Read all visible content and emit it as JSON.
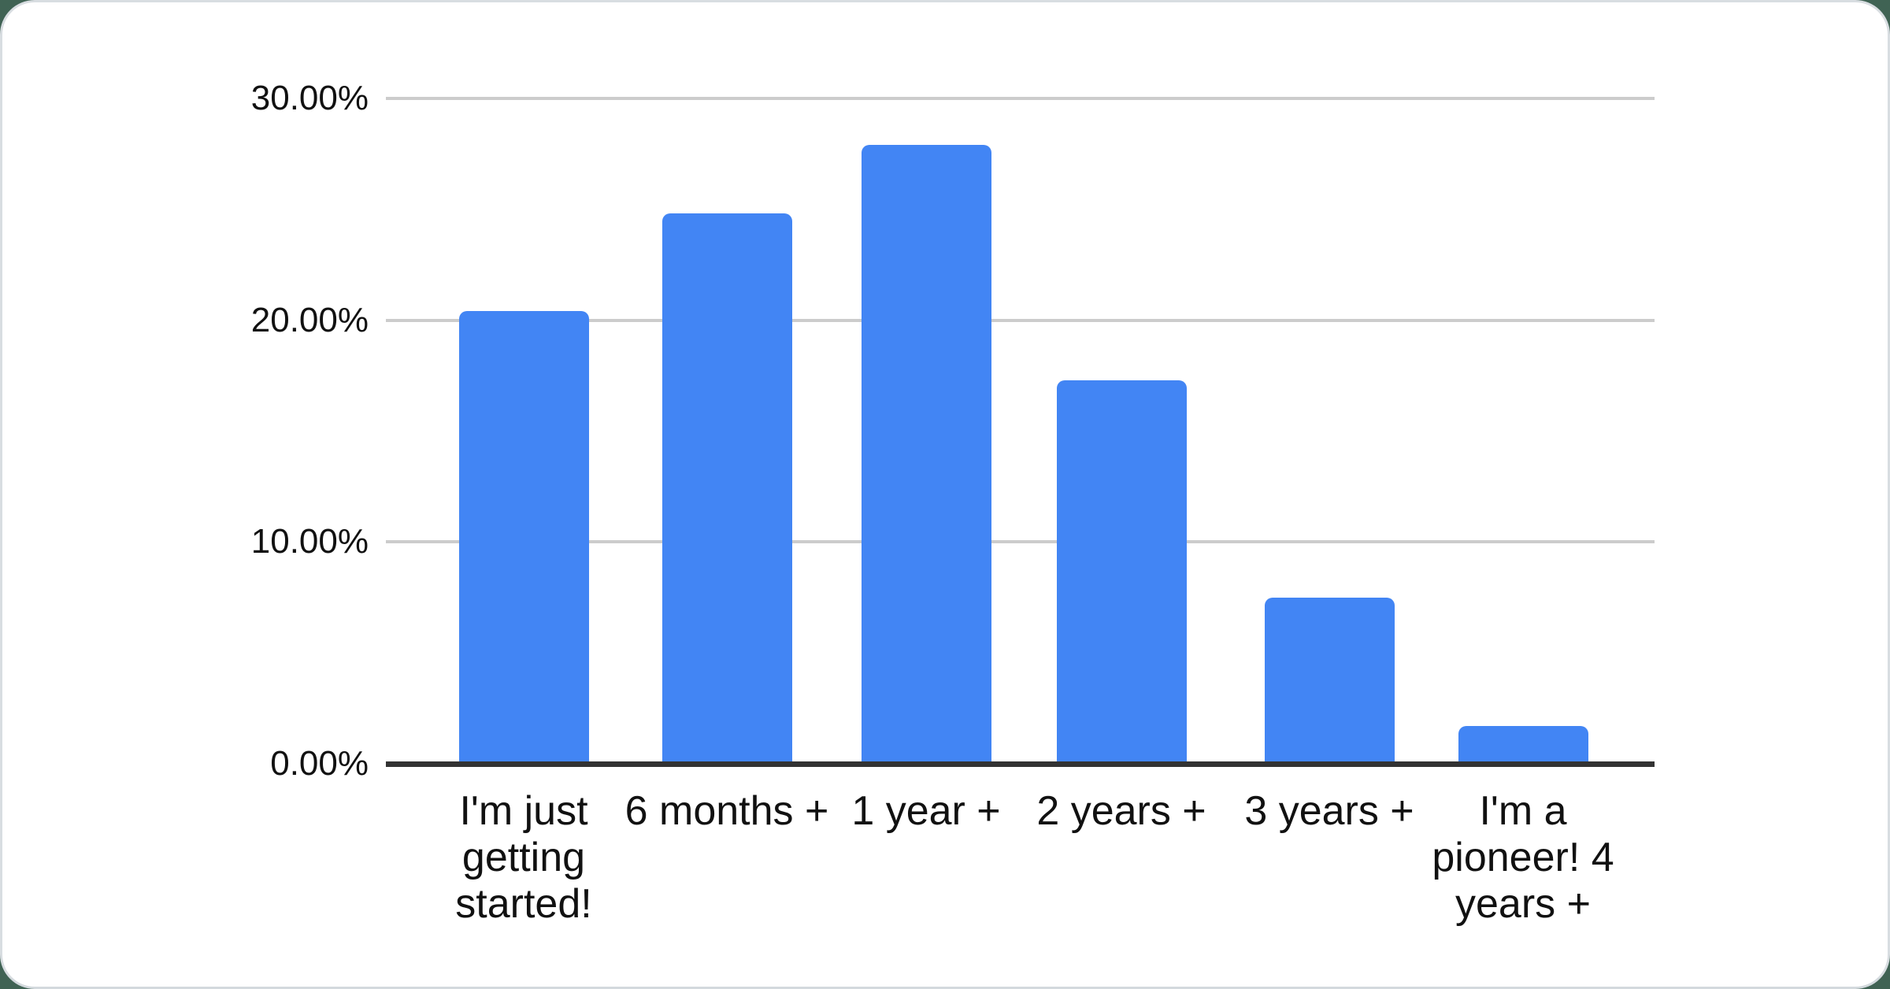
{
  "chart_data": {
    "type": "bar",
    "title": "",
    "xlabel": "",
    "ylabel": "",
    "categories": [
      "I'm just getting started!",
      "6 months +",
      "1 year +",
      "2 years +",
      "3 years +",
      "I'm a pioneer! 4 years +"
    ],
    "values": [
      20.4,
      24.8,
      27.9,
      17.3,
      7.5,
      1.7
    ],
    "value_unit": "percent",
    "ylim": [
      0,
      30
    ],
    "grid": true,
    "legend_position": "none",
    "y_ticks": [
      {
        "value": 30,
        "label": "30.00%"
      },
      {
        "value": 20,
        "label": "20.00%"
      },
      {
        "value": 10,
        "label": "10.00%"
      },
      {
        "value": 0,
        "label": "0.00%"
      }
    ]
  },
  "colors": {
    "bar": "#4285f4",
    "grid": "#cccccc",
    "axis": "#333333",
    "text": "#111111",
    "card_background": "#ffffff",
    "card_border": "#d8dde1",
    "page_background": "#406354"
  }
}
